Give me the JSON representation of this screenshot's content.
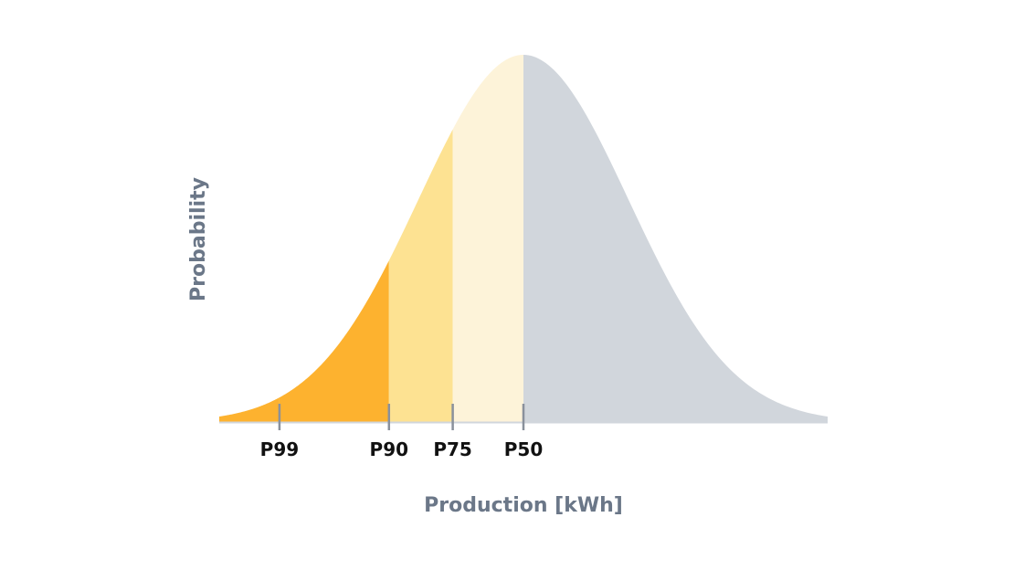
{
  "chart_data": {
    "type": "area",
    "distribution": "normal",
    "xlabel": "Production [kWh]",
    "ylabel": "Probability",
    "x_range_sigma": [
      -2.9,
      2.9
    ],
    "markers": [
      {
        "label": "P99",
        "z": -2.326,
        "fill_color": "#FDB22F"
      },
      {
        "label": "P90",
        "z": -1.282,
        "fill_color": "#FDB22F"
      },
      {
        "label": "P75",
        "z": -0.674,
        "fill_color": "#FDE292"
      },
      {
        "label": "P50",
        "z": 0.0,
        "fill_color": "#FDF3D9"
      }
    ],
    "upper_region_color": "#D1D6DC",
    "tick_color": "#8A919C",
    "axis_label_color": "#6B7788",
    "baseline_color": "#D1D6DC",
    "grid": false,
    "legend": "none"
  }
}
